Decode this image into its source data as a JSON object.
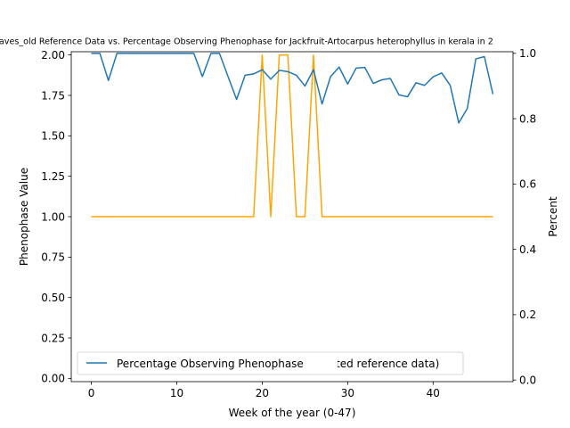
{
  "chart_data": {
    "type": "line",
    "title": "eaves_old Reference Data vs. Percentage Observing Phenophase for Jackfruit-Artocarpus heterophyllus in kerala in 2",
    "xlabel": "Week of the year (0-47)",
    "ylabel_left": "Phenophase Value",
    "ylabel_right": "Percent",
    "xlim": [
      -2.35,
      49.35
    ],
    "ylim_left": [
      -0.02,
      2.02
    ],
    "ylim_right": [
      -0.005,
      1.005
    ],
    "x_ticks": [
      0,
      10,
      20,
      30,
      40
    ],
    "y_ticks_left": [
      0.0,
      0.25,
      0.5,
      0.75,
      1.0,
      1.25,
      1.5,
      1.75,
      2.0
    ],
    "y_ticks_left_labels": [
      "0.00",
      "0.25",
      "0.50",
      "0.75",
      "1.00",
      "1.25",
      "1.50",
      "1.75",
      "2.00"
    ],
    "y_ticks_right": [
      0.0,
      0.2,
      0.4,
      0.6,
      0.8,
      1.0
    ],
    "y_ticks_right_labels": [
      "0.0",
      "0.2",
      "0.4",
      "0.6",
      "0.8",
      "1.0"
    ],
    "grid": false,
    "legend": {
      "placement": "lower-left",
      "entries": [
        {
          "label": "Percentage Observing Phenophase",
          "color": "#1f77b4"
        },
        {
          "label": "ted reference data)",
          "color": "#ffa500"
        }
      ]
    },
    "x": [
      0,
      1,
      2,
      3,
      4,
      5,
      6,
      7,
      8,
      9,
      10,
      11,
      12,
      13,
      14,
      15,
      16,
      17,
      18,
      19,
      20,
      21,
      22,
      23,
      24,
      25,
      26,
      27,
      28,
      29,
      30,
      31,
      32,
      33,
      34,
      35,
      36,
      37,
      38,
      39,
      40,
      41,
      42,
      43,
      44,
      45,
      46,
      47
    ],
    "series": [
      {
        "name": "",
        "axis": "left",
        "color": "#ffa500",
        "values": [
          1,
          1,
          1,
          1,
          1,
          1,
          1,
          1,
          1,
          1,
          1,
          1,
          1,
          1,
          1,
          1,
          1,
          1,
          1,
          1,
          2,
          1,
          2,
          2,
          1,
          1,
          2,
          1,
          1,
          1,
          1,
          1,
          1,
          1,
          1,
          1,
          1,
          1,
          1,
          1,
          1,
          1,
          1,
          1,
          1,
          1,
          1,
          1
        ]
      },
      {
        "name": "Percentage Observing Phenophase",
        "axis": "right",
        "color": "#1f77b4",
        "values": [
          1.0,
          1.0,
          0.917,
          1.0,
          1.0,
          1.0,
          1.0,
          1.0,
          1.0,
          1.0,
          1.0,
          1.0,
          1.0,
          0.929,
          1.0,
          1.0,
          0.929,
          0.859,
          0.933,
          0.937,
          0.95,
          0.921,
          0.948,
          0.944,
          0.933,
          0.9,
          0.95,
          0.845,
          0.929,
          0.958,
          0.906,
          0.955,
          0.957,
          0.908,
          0.919,
          0.923,
          0.873,
          0.867,
          0.91,
          0.902,
          0.928,
          0.94,
          0.902,
          0.787,
          0.831,
          0.983,
          0.99,
          0.875
        ]
      }
    ]
  }
}
